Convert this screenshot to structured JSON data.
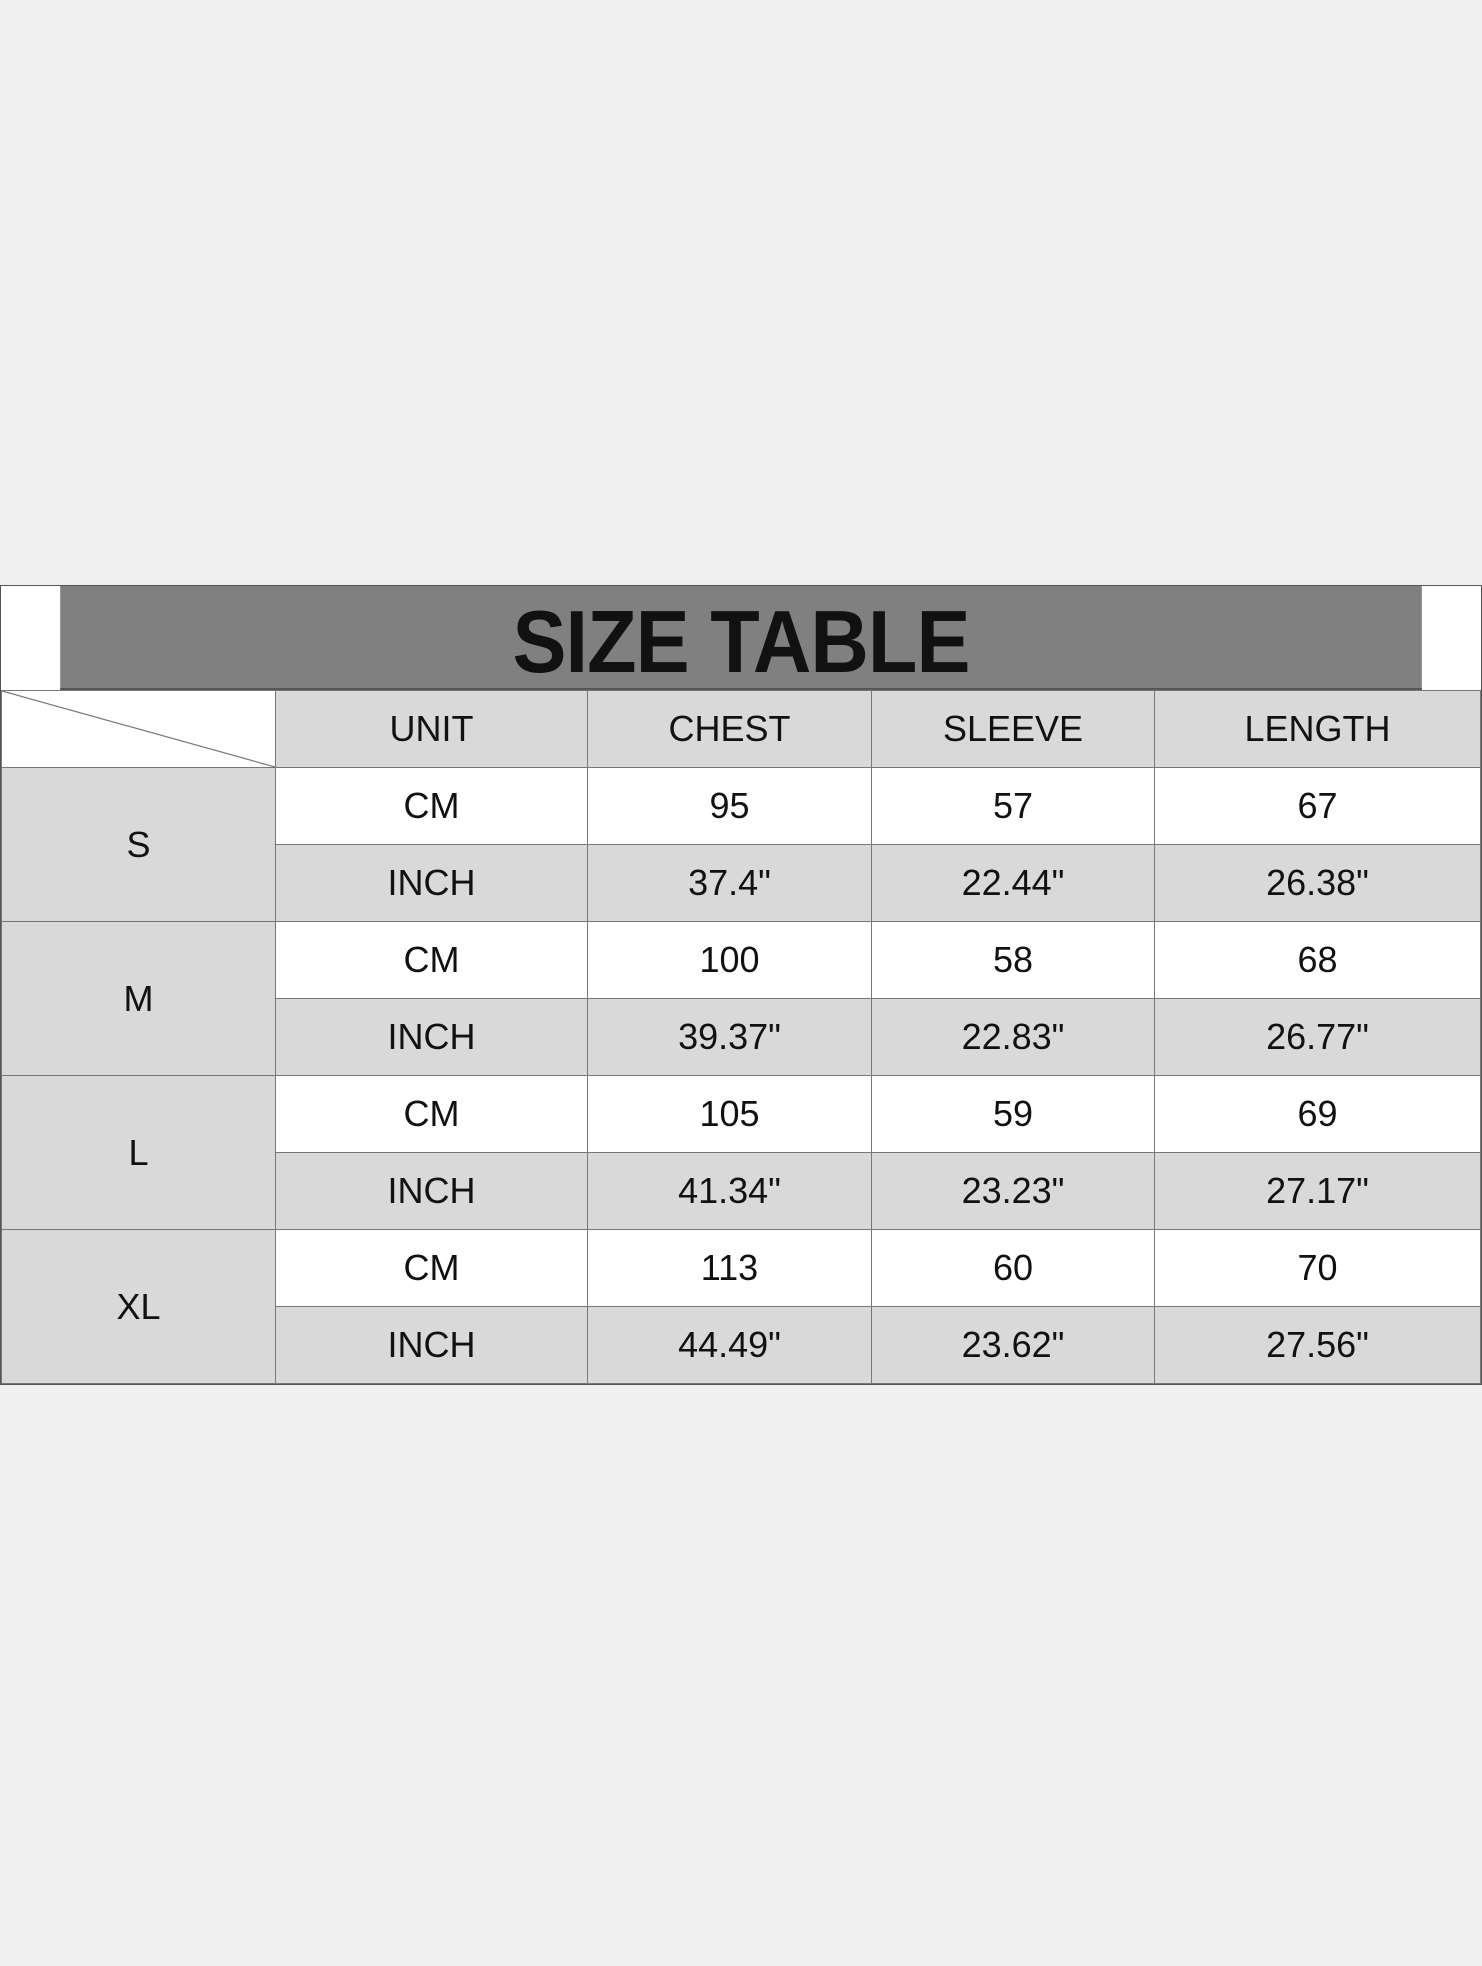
{
  "title": "SIZE TABLE",
  "headers": [
    "UNIT",
    "CHEST",
    "SLEEVE",
    "LENGTH"
  ],
  "sizes": [
    {
      "size": "S",
      "rows": [
        [
          "CM",
          "95",
          "57",
          "67"
        ],
        [
          "INCH",
          "37.4\"",
          "22.44\"",
          "26.38\""
        ]
      ]
    },
    {
      "size": "M",
      "rows": [
        [
          "CM",
          "100",
          "58",
          "68"
        ],
        [
          "INCH",
          "39.37\"",
          "22.83\"",
          "26.77\""
        ]
      ]
    },
    {
      "size": "L",
      "rows": [
        [
          "CM",
          "105",
          "59",
          "69"
        ],
        [
          "INCH",
          "41.34\"",
          "23.23\"",
          "27.17\""
        ]
      ]
    },
    {
      "size": "XL",
      "rows": [
        [
          "CM",
          "113",
          "60",
          "70"
        ],
        [
          "INCH",
          "44.49\"",
          "23.62\"",
          "27.56\""
        ]
      ]
    }
  ],
  "colors": {
    "background": "#f0f0f0",
    "title_band": "#808080",
    "gray_cell": "#d9d9d9",
    "white_cell": "#ffffff"
  }
}
